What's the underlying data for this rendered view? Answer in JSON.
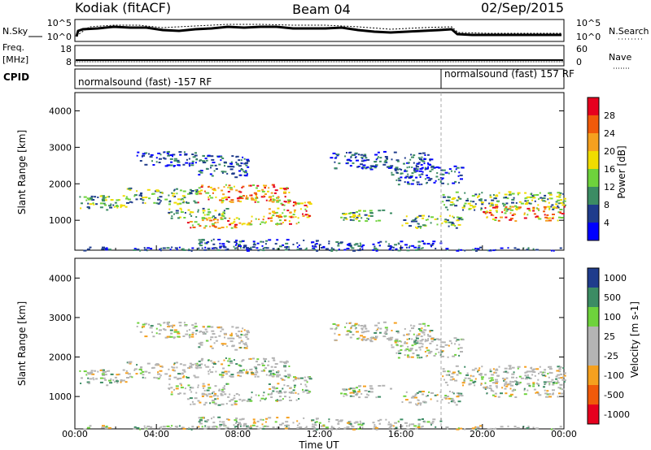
{
  "header": {
    "station": "Kodiak (fitACF)",
    "beam": "Beam 04",
    "date": "02/Sep/2015"
  },
  "summary_panels": {
    "nsky": {
      "label": "N.Sky",
      "ticks": [
        "10^5",
        "10^0"
      ],
      "right_label": "N.Search",
      "right_ticks": [
        "10^5",
        "10^0"
      ]
    },
    "freq": {
      "label_line1": "Freq.",
      "label_line2": "[MHz]",
      "ticks": [
        "18",
        "8"
      ],
      "right_label": "Nave",
      "right_ticks": [
        "60",
        "0"
      ]
    },
    "cpid": {
      "label": "CPID",
      "segments": [
        {
          "text": "normalsound (fast) -157 RF",
          "start_hour": 0
        },
        {
          "text": "normalsound (fast) 157 RF",
          "start_hour": 18
        }
      ]
    }
  },
  "chart_data": [
    {
      "type": "heatmap",
      "title": "",
      "xlabel": "",
      "ylabel": "Slant Range [km]",
      "xlim": [
        0,
        24
      ],
      "ylim": [
        180,
        4500
      ],
      "y_ticks": [
        1000,
        2000,
        3000,
        4000
      ],
      "x_tick_hours": [
        0,
        4,
        8,
        12,
        16,
        20,
        24
      ],
      "colorbar": {
        "label": "Power [dB]",
        "ticks": [
          "28",
          "24",
          "20",
          "16",
          "12",
          "8",
          "4"
        ],
        "colors": [
          "#e6001e",
          "#f05a0a",
          "#f5a01e",
          "#f0dc00",
          "#6ed23c",
          "#3c8c64",
          "#1f3c8c",
          "#0000ff"
        ]
      },
      "echo_regions": [
        {
          "t0": 0.0,
          "t1": 2.5,
          "r0": 1300,
          "r1": 1700,
          "level": "med"
        },
        {
          "t0": 2.5,
          "t1": 6.0,
          "r0": 1450,
          "r1": 1900,
          "level": "med"
        },
        {
          "t0": 4.5,
          "t1": 7.5,
          "r0": 1050,
          "r1": 1350,
          "level": "med"
        },
        {
          "t0": 5.5,
          "t1": 8.0,
          "r0": 800,
          "r1": 1100,
          "level": "high"
        },
        {
          "t0": 8.0,
          "t1": 11.0,
          "r0": 900,
          "r1": 1150,
          "level": "high"
        },
        {
          "t0": 6.0,
          "t1": 10.5,
          "r0": 1500,
          "r1": 2000,
          "level": "high"
        },
        {
          "t0": 9.5,
          "t1": 11.5,
          "r0": 1100,
          "r1": 1600,
          "level": "high"
        },
        {
          "t0": 3.0,
          "t1": 6.0,
          "r0": 2500,
          "r1": 2900,
          "level": "low"
        },
        {
          "t0": 6.0,
          "t1": 8.5,
          "r0": 2200,
          "r1": 2800,
          "level": "low"
        },
        {
          "t0": 12.5,
          "t1": 17.5,
          "r0": 2400,
          "r1": 2900,
          "level": "low"
        },
        {
          "t0": 15.5,
          "t1": 19.0,
          "r0": 2000,
          "r1": 2500,
          "level": "low"
        },
        {
          "t0": 18.0,
          "t1": 24.0,
          "r0": 1300,
          "r1": 1800,
          "level": "med"
        },
        {
          "t0": 20.0,
          "t1": 24.0,
          "r0": 1000,
          "r1": 1400,
          "level": "high"
        },
        {
          "t0": 13.0,
          "t1": 15.5,
          "r0": 1000,
          "r1": 1300,
          "level": "med"
        },
        {
          "t0": 16.0,
          "t1": 19.0,
          "r0": 800,
          "r1": 1150,
          "level": "med"
        },
        {
          "t0": 6.0,
          "t1": 12.0,
          "r0": 250,
          "r1": 500,
          "level": "low"
        },
        {
          "t0": 12.0,
          "t1": 18.0,
          "r0": 250,
          "r1": 450,
          "level": "low"
        },
        {
          "t0": 0.0,
          "t1": 24.0,
          "r0": 180,
          "r1": 280,
          "level": "low"
        }
      ]
    },
    {
      "type": "heatmap",
      "title": "",
      "xlabel": "Time UT",
      "ylabel": "Slant Range [km]",
      "xlim": [
        0,
        24
      ],
      "ylim": [
        180,
        4500
      ],
      "y_ticks": [
        1000,
        2000,
        3000,
        4000
      ],
      "x_tick_labels": [
        "00:00",
        "04:00",
        "08:00",
        "12:00",
        "16:00",
        "20:00",
        "00:00"
      ],
      "colorbar": {
        "label": "Velocity [m s-1]",
        "ticks": [
          "1000",
          "500",
          "100",
          "25",
          "-25",
          "-100",
          "-500",
          "-1000"
        ],
        "colors": [
          "#1f3c8c",
          "#3c8c64",
          "#6ed23c",
          "#b4b4b4",
          "#b4b4b4",
          "#f5a01e",
          "#f05a0a",
          "#e6001e"
        ]
      }
    }
  ]
}
